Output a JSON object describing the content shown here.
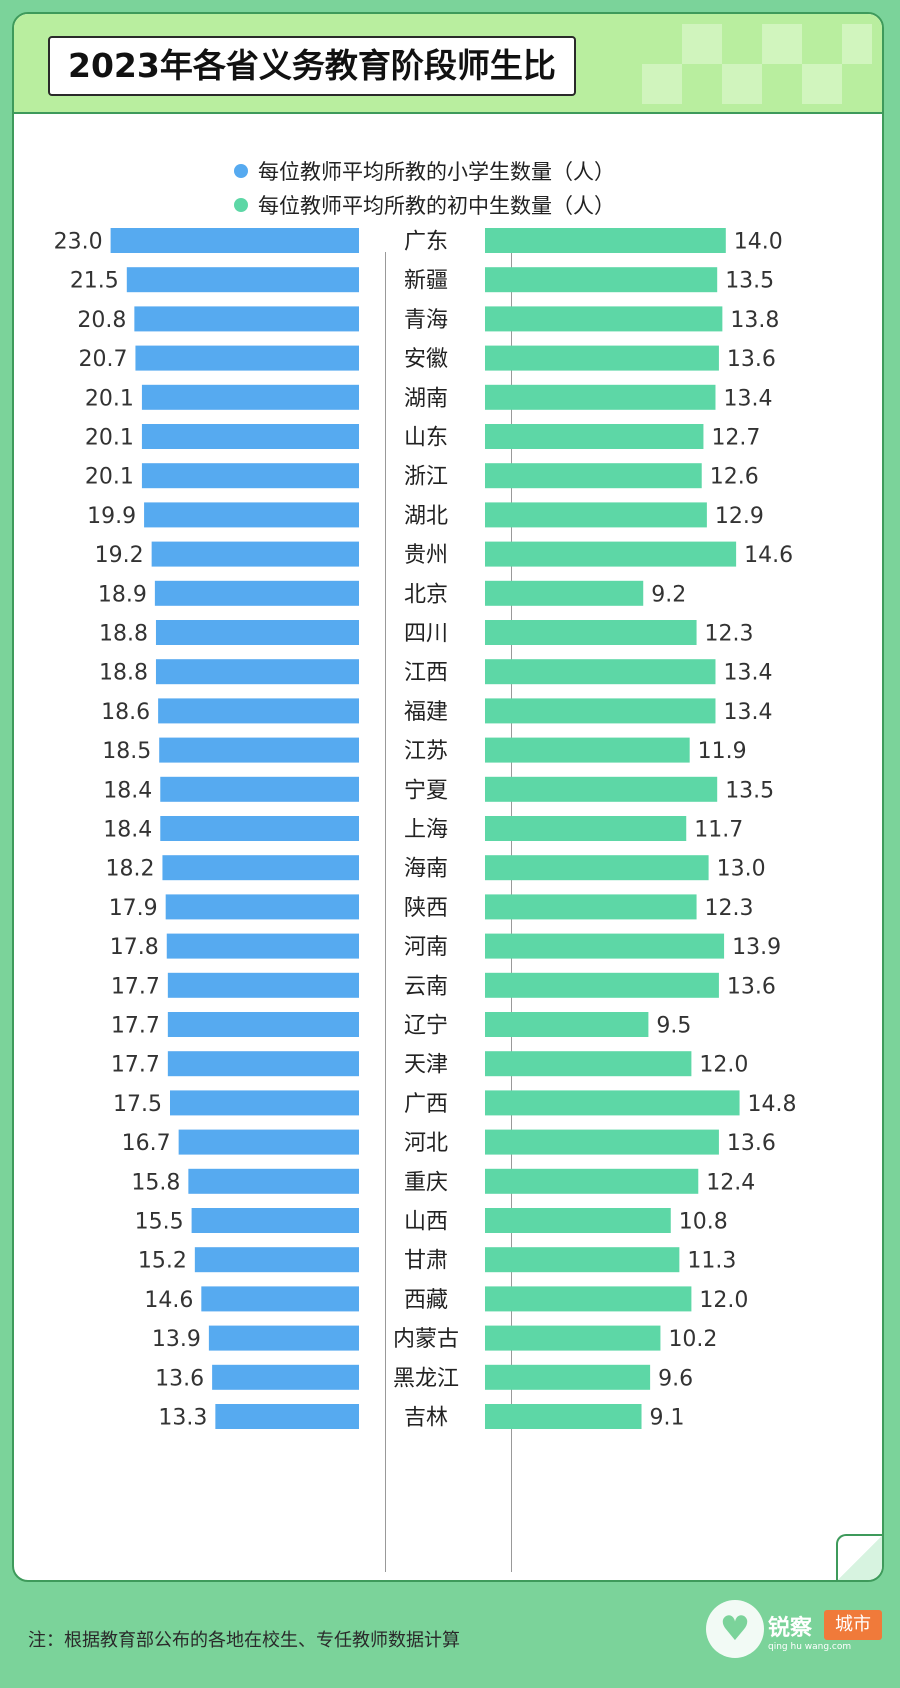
{
  "title": "2023年各省义务教育阶段师生比",
  "legend": [
    {
      "label": "每位教师平均所教的小学生数量（人）",
      "color": "#56aaf0"
    },
    {
      "label": "每位教师平均所教的初中生数量（人）",
      "color": "#5dd7a6"
    }
  ],
  "footnote": "注：根据教育部公布的各地在校生、专任教师数据计算",
  "logo": {
    "text": "锐察",
    "sub": "qing hu wang.com",
    "badge": "城市"
  },
  "colors": {
    "primary": "#56aaf0",
    "middle": "#5dd7a6",
    "background": "#7bd39a"
  },
  "chart_data": {
    "type": "bar",
    "orientation": "horizontal-back-to-back",
    "categories": [
      "广东",
      "新疆",
      "青海",
      "安徽",
      "湖南",
      "山东",
      "浙江",
      "湖北",
      "贵州",
      "北京",
      "四川",
      "江西",
      "福建",
      "江苏",
      "宁夏",
      "上海",
      "海南",
      "陕西",
      "河南",
      "云南",
      "辽宁",
      "天津",
      "广西",
      "河北",
      "重庆",
      "山西",
      "甘肃",
      "西藏",
      "内蒙古",
      "黑龙江",
      "吉林"
    ],
    "series": [
      {
        "name": "每位教师平均所教的小学生数量（人）",
        "color": "#56aaf0",
        "values": [
          23.0,
          21.5,
          20.8,
          20.7,
          20.1,
          20.1,
          20.1,
          19.9,
          19.2,
          18.9,
          18.8,
          18.8,
          18.6,
          18.5,
          18.4,
          18.4,
          18.2,
          17.9,
          17.8,
          17.7,
          17.7,
          17.7,
          17.5,
          16.7,
          15.8,
          15.5,
          15.2,
          14.6,
          13.9,
          13.6,
          13.3
        ]
      },
      {
        "name": "每位教师平均所教的初中生数量（人）",
        "color": "#5dd7a6",
        "values": [
          14.0,
          13.5,
          13.8,
          13.6,
          13.4,
          12.7,
          12.6,
          12.9,
          14.6,
          9.2,
          12.3,
          13.4,
          13.4,
          11.9,
          13.5,
          11.7,
          13.0,
          12.3,
          13.9,
          13.6,
          9.5,
          12.0,
          14.8,
          13.6,
          12.4,
          10.8,
          11.3,
          12.0,
          10.2,
          9.6,
          9.1
        ]
      }
    ],
    "value_format": "0.0"
  }
}
